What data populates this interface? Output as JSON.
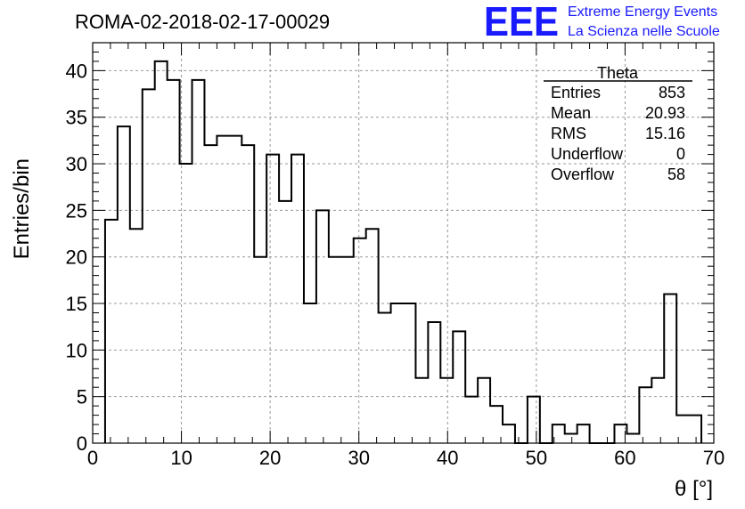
{
  "chart_data": {
    "type": "histogram",
    "title": "ROMA-02-2018-02-17-00029",
    "xlabel": "θ [°]",
    "ylabel": "Entries/bin",
    "xlim": [
      0,
      70
    ],
    "ylim": [
      0,
      43
    ],
    "x_ticks": [
      0,
      10,
      20,
      30,
      40,
      50,
      60,
      70
    ],
    "y_ticks": [
      0,
      5,
      10,
      15,
      20,
      25,
      30,
      35,
      40
    ],
    "grid": true,
    "bin_width": 1.4,
    "bin_edges_start": 1.4,
    "values": [
      24,
      34,
      23,
      38,
      41,
      39,
      30,
      39,
      32,
      33,
      33,
      32,
      20,
      31,
      26,
      31,
      15,
      25,
      20,
      20,
      22,
      23,
      14,
      15,
      15,
      7,
      13,
      7,
      12,
      5,
      7,
      4,
      2,
      0,
      5,
      0,
      2,
      1,
      2,
      0,
      0,
      2,
      1,
      6,
      7,
      16,
      3,
      3
    ],
    "stats_box": {
      "name": "Theta",
      "rows": [
        {
          "label": "Entries",
          "value": "853"
        },
        {
          "label": "Mean",
          "value": "20.93"
        },
        {
          "label": "RMS",
          "value": "15.16"
        },
        {
          "label": "Underflow",
          "value": "0"
        },
        {
          "label": "Overflow",
          "value": "58"
        }
      ]
    }
  },
  "logo": {
    "mark": "EEE",
    "line1": "Extreme Energy Events",
    "line2": "La Scienza nelle Scuole"
  },
  "colors": {
    "logo": "#1a1aff",
    "line": "#000000",
    "grid": "#999999"
  }
}
